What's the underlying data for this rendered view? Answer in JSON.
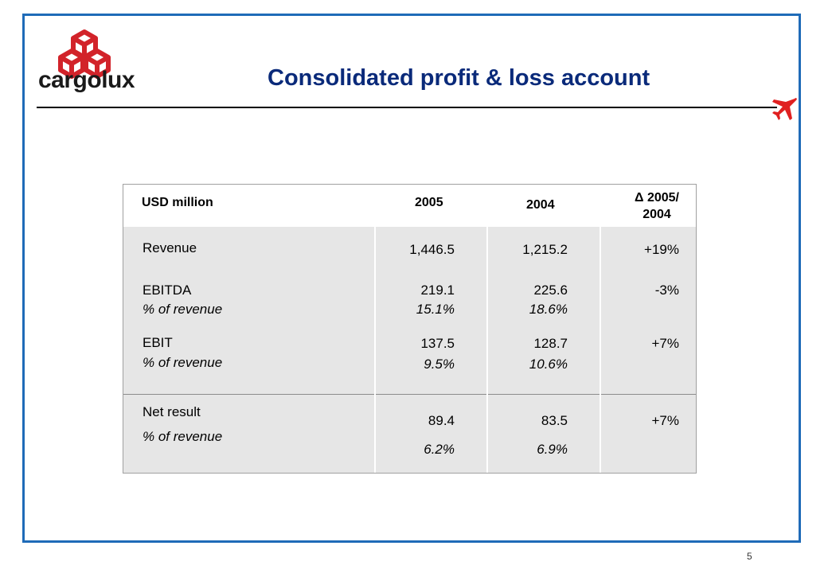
{
  "brand": {
    "name": "cargolux",
    "color": "#d2232a"
  },
  "slide": {
    "title": "Consolidated profit & loss account",
    "page_number": "5"
  },
  "table": {
    "headers": {
      "label": "USD million",
      "col1": "2005",
      "col2": "2004",
      "col3_line1": "Δ 2005/",
      "col3_line2": "2004"
    },
    "rows": [
      {
        "label": "Revenue",
        "v2005": "1,446.5",
        "v2004": "1,215.2",
        "delta": "+19%"
      },
      {
        "label": "EBITDA",
        "sub_label": "% of revenue",
        "v2005": "219.1",
        "v2004": "225.6",
        "delta": "-3%",
        "p2005": "15.1%",
        "p2004": "18.6%"
      },
      {
        "label": "EBIT",
        "sub_label": "% of revenue",
        "v2005": "137.5",
        "v2004": "128.7",
        "delta": "+7%",
        "p2005": "9.5%",
        "p2004": "10.6%"
      },
      {
        "label": "Net result",
        "sub_label": "% of revenue",
        "v2005": "89.4",
        "v2004": "83.5",
        "delta": "+7%",
        "p2005": "6.2%",
        "p2004": "6.9%"
      }
    ]
  },
  "colors": {
    "frame": "#1f6bb8",
    "title": "#0a2a7a",
    "plane": "#e02020"
  },
  "icons": {
    "logo": "cargolux-cubes-logo",
    "plane": "airplane-icon"
  }
}
